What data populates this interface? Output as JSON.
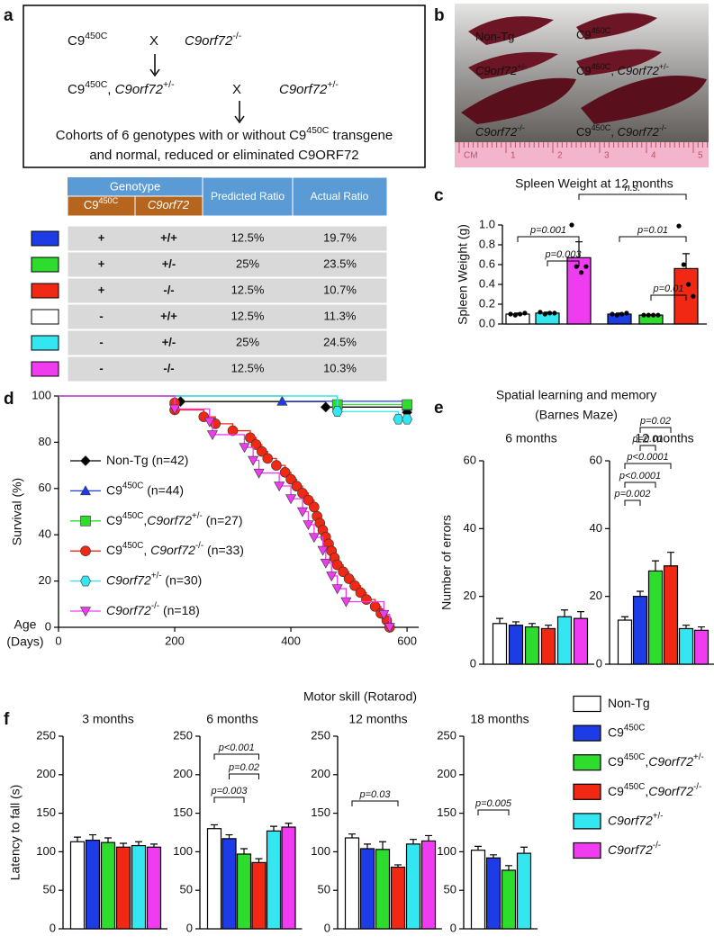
{
  "panel_labels": [
    "a",
    "b",
    "c",
    "d",
    "e",
    "f"
  ],
  "diagram": {
    "row1": [
      "C9450C",
      "X",
      "C9orf72-/-"
    ],
    "row2": [
      "C9450C, C9orf72+/-",
      "X",
      "C9orf72+/-"
    ],
    "caption": [
      "Cohorts of 6 genotypes with or without C9450C transgene",
      "and normal, reduced or eliminated C9ORF72"
    ]
  },
  "table": {
    "group": "Genotype",
    "sub": [
      "C9450C",
      "C9orf72"
    ],
    "predicted": "Predicted Ratio",
    "actual": "Actual Ratio",
    "row_colors": [
      "#1e3ce6",
      "#2edc2e",
      "#f02814",
      "#ffffff",
      "#33e6f0",
      "#f03cf0"
    ],
    "rows": [
      [
        "+",
        "+/+",
        "12.5%",
        "19.7%"
      ],
      [
        "+",
        "+/-",
        "25%",
        "23.5%"
      ],
      [
        "+",
        "-/-",
        "12.5%",
        "10.7%"
      ],
      [
        "-",
        "+/+",
        "12.5%",
        "11.3%"
      ],
      [
        "-",
        "+/-",
        "25%",
        "24.5%"
      ],
      [
        "-",
        "-/-",
        "12.5%",
        "10.3%"
      ]
    ]
  },
  "photo": {
    "labels": [
      "Non-Tg",
      "C9450C",
      "C9orf72+/-",
      "C9450C, C9orf72+/-",
      "C9orf72-/-",
      "C9450C, C9orf72-/-"
    ],
    "ruler": [
      "CM",
      "1",
      "2",
      "3",
      "4",
      "5"
    ]
  },
  "panel_e": {
    "title": "Spatial learning and memory",
    "subtitle": "(Barnes Maze)"
  },
  "panel_f": {
    "title": "Motor skill (Rotarod)"
  },
  "legend_f": {
    "names": [
      "Non-Tg",
      "C9450C",
      "C9450C,C9orf72+/-",
      "C9450C,C9orf72-/-",
      "C9orf72+/-",
      "C9orf72-/-"
    ],
    "colors": [
      "#ffffff",
      "#1e3ce6",
      "#2edc2e",
      "#f02814",
      "#33e6f0",
      "#f03cf0"
    ]
  },
  "chart_data": [
    {
      "type": "bar",
      "title": "Spleen Weight at 12 months",
      "ylabel": "Spleen Weight (g)",
      "values": [
        0.1,
        0.11,
        0.67,
        0.1,
        0.09,
        0.56
      ],
      "errors": [
        0.01,
        0.01,
        0.16,
        0.01,
        0.004,
        0.15
      ],
      "points": [
        [
          0.1,
          0.09,
          0.1,
          0.11
        ],
        [
          0.12,
          0.1,
          0.11,
          0.11
        ],
        [
          1.0,
          0.58,
          0.52,
          0.58
        ],
        [
          0.1,
          0.09,
          0.1,
          0.11
        ],
        [
          0.09,
          0.09,
          0.09,
          0.09
        ],
        [
          0.99,
          0.6,
          0.4,
          0.28
        ]
      ],
      "colors": [
        "#ffffff",
        "#33e6f0",
        "#f03cf0",
        "#1e3ce6",
        "#2edc2e",
        "#f02814"
      ],
      "ylim": [
        0,
        1
      ],
      "yticks": [
        {
          "value": 0,
          "label": "0.0"
        },
        0.2,
        0.4,
        0.6,
        0.8,
        {
          "value": 1,
          "label": "1.0"
        }
      ],
      "annotations": [
        "p=0.001",
        "p=0.003",
        "n.s.",
        "p=0.01",
        "p=0.01"
      ]
    },
    {
      "type": "line",
      "ylabel": "Survival (%)",
      "xlabel": [
        "Age",
        "(Days)"
      ],
      "xlim": [
        0,
        620
      ],
      "xticks": [
        0,
        200,
        400,
        600
      ],
      "ylim": [
        0,
        100
      ],
      "yticks": [
        0,
        20,
        40,
        60,
        80,
        100
      ],
      "series": [
        {
          "name": "Non-Tg (n=42)",
          "color": "#000000",
          "marker": "diamond",
          "x": [
            0,
            210,
            460,
            600
          ],
          "values": [
            100,
            97.6,
            95.2,
            92.9
          ]
        },
        {
          "name": "C9450C (n=44)",
          "color": "#1e3ce6",
          "marker": "triangle",
          "x": [
            0,
            385,
            600
          ],
          "values": [
            100,
            97.7,
            95.5
          ]
        },
        {
          "name": "C9450C,C9orf72+/- (n=27)",
          "color": "#2edc2e",
          "marker": "square",
          "x": [
            0,
            480,
            600
          ],
          "values": [
            100,
            96.3,
            96.3
          ]
        },
        {
          "name": "C9450C, C9orf72-/- (n=33)",
          "color": "#f02814",
          "marker": "circle",
          "x": [
            0,
            200,
            200,
            250,
            270,
            300,
            330,
            340,
            350,
            360,
            375,
            390,
            400,
            410,
            420,
            430,
            440,
            445,
            450,
            455,
            460,
            465,
            470,
            475,
            480,
            490,
            500,
            510,
            520,
            530,
            545,
            555,
            565,
            570
          ],
          "values": [
            100,
            97,
            94,
            91,
            88,
            85,
            82,
            79,
            76,
            73,
            70,
            67,
            64,
            61,
            58,
            55,
            52,
            48,
            45,
            42,
            39,
            36,
            33,
            30,
            27,
            24,
            21,
            18,
            15,
            12,
            9,
            6,
            3,
            0
          ]
        },
        {
          "name": "C9orf72+/- (n=30)",
          "color": "#33e6f0",
          "marker": "hexagon",
          "x": [
            0,
            480,
            585,
            600
          ],
          "values": [
            100,
            93.3,
            90,
            90
          ]
        },
        {
          "name": "C9orf72-/- (n=18)",
          "color": "#f03cf0",
          "marker": "triangle-down",
          "x": [
            0,
            200,
            260,
            265,
            320,
            335,
            345,
            380,
            400,
            420,
            430,
            440,
            455,
            460,
            470,
            480,
            495,
            560,
            570
          ],
          "values": [
            100,
            94.4,
            88.9,
            83.3,
            77.8,
            72.2,
            66.7,
            61.1,
            55.6,
            50,
            44.4,
            38.9,
            33.3,
            27.8,
            22.2,
            16.7,
            11.1,
            5.6,
            0
          ]
        }
      ]
    },
    {
      "type": "bar",
      "title": "6 months",
      "ylabel": "Number of errors",
      "values": [
        12,
        11.5,
        11,
        10.5,
        14,
        13.5
      ],
      "errors": [
        1.5,
        1,
        1,
        1,
        2,
        2
      ],
      "colors": [
        "#ffffff",
        "#1e3ce6",
        "#2edc2e",
        "#f02814",
        "#33e6f0",
        "#f03cf0"
      ],
      "ylim": [
        0,
        60
      ],
      "yticks": [
        0,
        20,
        40,
        60
      ],
      "annotations": []
    },
    {
      "type": "bar",
      "title": "12 months",
      "values": [
        13,
        20,
        27.5,
        29,
        10.5,
        10
      ],
      "errors": [
        1,
        1.5,
        3,
        4,
        1,
        1
      ],
      "colors": [
        "#ffffff",
        "#1e3ce6",
        "#2edc2e",
        "#f02814",
        "#33e6f0",
        "#f03cf0"
      ],
      "ylim": [
        0,
        60
      ],
      "yticks": [
        0,
        20,
        40,
        60
      ],
      "annotations": [
        "p=0.02",
        "p=0.01",
        "p<0.0001",
        "p<0.0001",
        "p=0.002"
      ]
    },
    {
      "type": "bar",
      "title": "3 months",
      "ylabel": "Latency to fall (s)",
      "values": [
        113,
        115,
        112,
        106,
        108,
        106
      ],
      "errors": [
        6,
        7,
        6,
        5,
        5,
        4
      ],
      "colors": [
        "#ffffff",
        "#1e3ce6",
        "#2edc2e",
        "#f02814",
        "#33e6f0",
        "#f03cf0"
      ],
      "ylim": [
        0,
        250
      ],
      "yticks": [
        0,
        50,
        100,
        150,
        200,
        250
      ],
      "annotations": []
    },
    {
      "type": "bar",
      "title": "6 months",
      "values": [
        130,
        117,
        97,
        86,
        127,
        132
      ],
      "errors": [
        5,
        5,
        7,
        5,
        6,
        5
      ],
      "colors": [
        "#ffffff",
        "#1e3ce6",
        "#2edc2e",
        "#f02814",
        "#33e6f0",
        "#f03cf0"
      ],
      "ylim": [
        0,
        250
      ],
      "yticks": [
        0,
        50,
        100,
        150,
        200,
        250
      ],
      "annotations": [
        "p<0.001",
        "p=0.02",
        "p=0.003"
      ]
    },
    {
      "type": "bar",
      "title": "12 months",
      "values": [
        118,
        104,
        103,
        80,
        110,
        114
      ],
      "errors": [
        5,
        6,
        10,
        3,
        6,
        7
      ],
      "colors": [
        "#ffffff",
        "#1e3ce6",
        "#2edc2e",
        "#f02814",
        "#33e6f0",
        "#f03cf0"
      ],
      "ylim": [
        0,
        250
      ],
      "yticks": [
        0,
        50,
        100,
        150,
        200,
        250
      ],
      "annotations": [
        "p=0.03"
      ]
    },
    {
      "type": "bar",
      "title": "18 months",
      "values": [
        102,
        92,
        76,
        98
      ],
      "errors": [
        5,
        4,
        6,
        8
      ],
      "colors": [
        "#ffffff",
        "#1e3ce6",
        "#2edc2e",
        "#33e6f0"
      ],
      "ylim": [
        0,
        250
      ],
      "yticks": [
        0,
        50,
        100,
        150,
        200,
        250
      ],
      "annotations": [
        "p=0.005"
      ]
    }
  ]
}
